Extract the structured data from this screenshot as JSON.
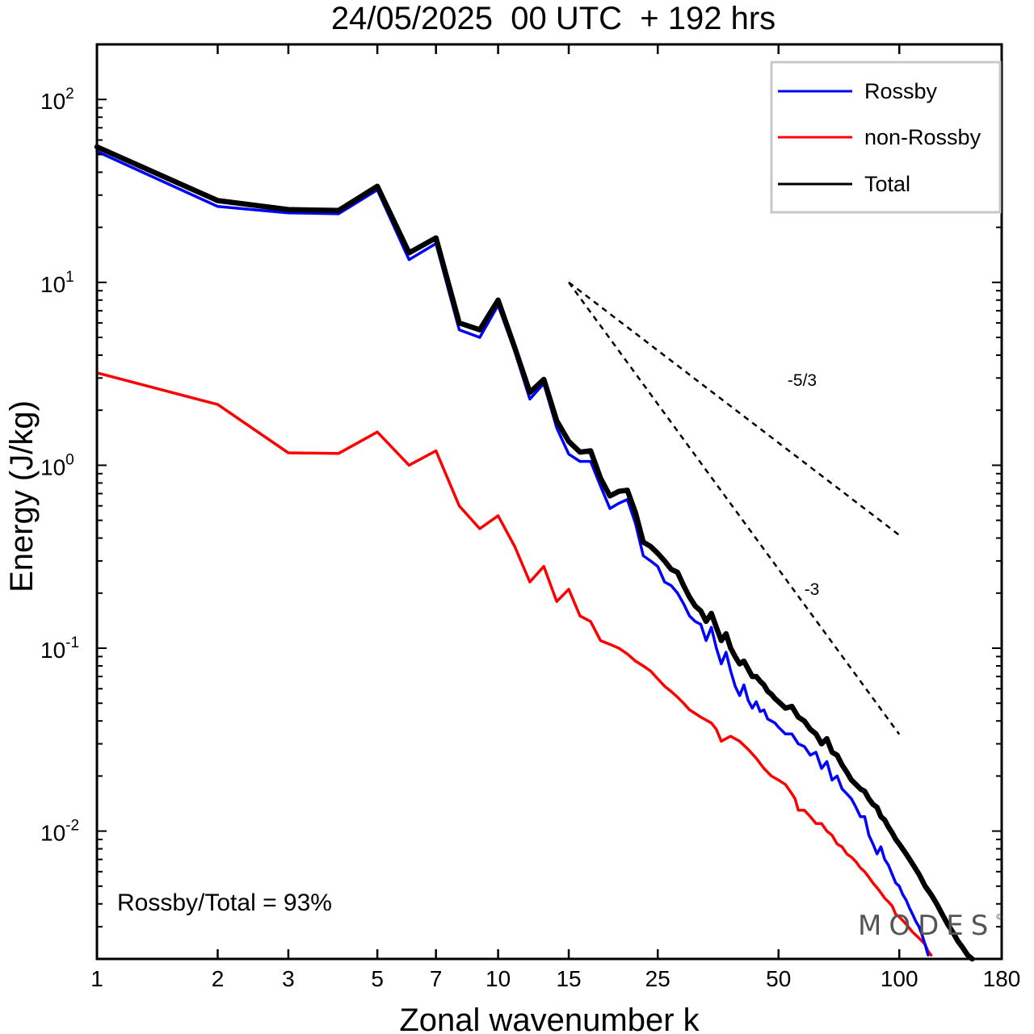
{
  "chart_data": {
    "type": "line",
    "title": "24/05/2025  00 UTC  + 192 hrs",
    "xlabel": "Zonal wavenumber k",
    "ylabel": "Energy (J/kg)",
    "xscale": "log",
    "yscale": "log",
    "xlim": [
      1,
      180
    ],
    "ylim": [
      0.002,
      200
    ],
    "x_ticks": [
      1,
      2,
      3,
      5,
      7,
      10,
      15,
      25,
      50,
      100,
      180
    ],
    "y_ticks": [
      {
        "value": 100,
        "base": "10",
        "exp": "2"
      },
      {
        "value": 10,
        "base": "10",
        "exp": "1"
      },
      {
        "value": 1,
        "base": "10",
        "exp": "0"
      },
      {
        "value": 0.1,
        "base": "10",
        "exp": "-1"
      },
      {
        "value": 0.01,
        "base": "10",
        "exp": "-2"
      }
    ],
    "legend_position": "top-right",
    "grid": false,
    "series": [
      {
        "name": "Rossby",
        "color": "#0000ff",
        "values": [
          [
            1,
            52
          ],
          [
            2,
            26
          ],
          [
            3,
            24
          ],
          [
            4,
            23.7
          ],
          [
            5,
            32
          ],
          [
            6,
            13.3
          ],
          [
            7,
            16.3
          ],
          [
            8,
            5.5
          ],
          [
            9,
            5.0
          ],
          [
            10,
            7.5
          ],
          [
            11,
            4.2
          ],
          [
            12,
            2.3
          ],
          [
            13,
            2.8
          ],
          [
            14,
            1.6
          ],
          [
            15,
            1.15
          ],
          [
            16,
            1.05
          ],
          [
            17,
            1.05
          ],
          [
            18,
            0.77
          ],
          [
            19,
            0.58
          ],
          [
            20,
            0.62
          ],
          [
            21,
            0.65
          ],
          [
            22,
            0.48
          ],
          [
            23,
            0.32
          ],
          [
            24,
            0.3
          ],
          [
            25,
            0.28
          ],
          [
            26,
            0.23
          ],
          [
            27,
            0.22
          ],
          [
            28,
            0.2
          ],
          [
            29,
            0.175
          ],
          [
            30,
            0.15
          ],
          [
            31,
            0.14
          ],
          [
            32,
            0.135
          ],
          [
            33,
            0.11
          ],
          [
            34,
            0.13
          ],
          [
            35,
            0.1
          ],
          [
            36,
            0.082
          ],
          [
            37,
            0.095
          ],
          [
            38,
            0.075
          ],
          [
            39,
            0.062
          ],
          [
            40,
            0.055
          ],
          [
            41,
            0.063
          ],
          [
            42,
            0.052
          ],
          [
            43,
            0.047
          ],
          [
            44,
            0.051
          ],
          [
            45,
            0.045
          ],
          [
            46,
            0.046
          ],
          [
            47,
            0.041
          ],
          [
            48,
            0.04
          ],
          [
            49,
            0.039
          ],
          [
            50,
            0.037
          ],
          [
            52,
            0.034
          ],
          [
            54,
            0.034
          ],
          [
            56,
            0.03
          ],
          [
            58,
            0.029
          ],
          [
            60,
            0.026
          ],
          [
            62,
            0.027
          ],
          [
            64,
            0.022
          ],
          [
            66,
            0.024
          ],
          [
            68,
            0.019
          ],
          [
            70,
            0.02
          ],
          [
            72,
            0.017
          ],
          [
            74,
            0.016
          ],
          [
            76,
            0.015
          ],
          [
            78,
            0.0135
          ],
          [
            80,
            0.012
          ],
          [
            82,
            0.012
          ],
          [
            84,
            0.0095
          ],
          [
            86,
            0.0085
          ],
          [
            88,
            0.0075
          ],
          [
            90,
            0.0082
          ],
          [
            92,
            0.007
          ],
          [
            94,
            0.0065
          ],
          [
            96,
            0.0058
          ],
          [
            98,
            0.0052
          ],
          [
            100,
            0.005
          ],
          [
            102,
            0.0045
          ],
          [
            104,
            0.0042
          ],
          [
            106,
            0.0038
          ],
          [
            108,
            0.0035
          ],
          [
            110,
            0.0032
          ],
          [
            112,
            0.003
          ],
          [
            114,
            0.0027
          ],
          [
            116,
            0.0024
          ],
          [
            118,
            0.0021
          ]
        ]
      },
      {
        "name": "non-Rossby",
        "color": "#ff0000",
        "values": [
          [
            1,
            3.2
          ],
          [
            2,
            2.15
          ],
          [
            3,
            1.17
          ],
          [
            4,
            1.16
          ],
          [
            5,
            1.52
          ],
          [
            6,
            1.0
          ],
          [
            7,
            1.2
          ],
          [
            8,
            0.6
          ],
          [
            9,
            0.45
          ],
          [
            10,
            0.53
          ],
          [
            11,
            0.36
          ],
          [
            12,
            0.23
          ],
          [
            13,
            0.28
          ],
          [
            14,
            0.18
          ],
          [
            15,
            0.21
          ],
          [
            16,
            0.15
          ],
          [
            17,
            0.14
          ],
          [
            18,
            0.11
          ],
          [
            19,
            0.105
          ],
          [
            20,
            0.1
          ],
          [
            21,
            0.093
          ],
          [
            22,
            0.085
          ],
          [
            23,
            0.08
          ],
          [
            24,
            0.075
          ],
          [
            25,
            0.068
          ],
          [
            26,
            0.062
          ],
          [
            27,
            0.058
          ],
          [
            28,
            0.054
          ],
          [
            29,
            0.05
          ],
          [
            30,
            0.046
          ],
          [
            32,
            0.042
          ],
          [
            34,
            0.039
          ],
          [
            35,
            0.036
          ],
          [
            36,
            0.031
          ],
          [
            37,
            0.032
          ],
          [
            38,
            0.033
          ],
          [
            40,
            0.031
          ],
          [
            42,
            0.028
          ],
          [
            44,
            0.025
          ],
          [
            46,
            0.022
          ],
          [
            48,
            0.02
          ],
          [
            50,
            0.019
          ],
          [
            52,
            0.018
          ],
          [
            54,
            0.016
          ],
          [
            55,
            0.015
          ],
          [
            56,
            0.013
          ],
          [
            58,
            0.013
          ],
          [
            60,
            0.012
          ],
          [
            62,
            0.011
          ],
          [
            64,
            0.011
          ],
          [
            66,
            0.01
          ],
          [
            68,
            0.0095
          ],
          [
            70,
            0.0085
          ],
          [
            72,
            0.0082
          ],
          [
            74,
            0.0075
          ],
          [
            76,
            0.0072
          ],
          [
            78,
            0.0068
          ],
          [
            80,
            0.0063
          ],
          [
            82,
            0.006
          ],
          [
            84,
            0.0056
          ],
          [
            86,
            0.0052
          ],
          [
            88,
            0.0049
          ],
          [
            90,
            0.0046
          ],
          [
            92,
            0.0043
          ],
          [
            94,
            0.0041
          ],
          [
            96,
            0.0039
          ],
          [
            98,
            0.0035
          ],
          [
            100,
            0.0034
          ],
          [
            104,
            0.0031
          ],
          [
            108,
            0.0028
          ],
          [
            112,
            0.0026
          ],
          [
            116,
            0.0024
          ],
          [
            118,
            0.0022
          ],
          [
            120,
            0.0021
          ]
        ]
      },
      {
        "name": "Total",
        "color": "#000000",
        "values": [
          [
            1,
            55
          ],
          [
            2,
            28
          ],
          [
            3,
            25
          ],
          [
            4,
            24.7
          ],
          [
            5,
            33.5
          ],
          [
            6,
            14.5
          ],
          [
            7,
            17.5
          ],
          [
            8,
            6.0
          ],
          [
            9,
            5.5
          ],
          [
            10,
            8.0
          ],
          [
            11,
            4.4
          ],
          [
            12,
            2.5
          ],
          [
            13,
            2.95
          ],
          [
            14,
            1.75
          ],
          [
            15,
            1.35
          ],
          [
            16,
            1.18
          ],
          [
            17,
            1.2
          ],
          [
            18,
            0.85
          ],
          [
            19,
            0.68
          ],
          [
            20,
            0.72
          ],
          [
            21,
            0.73
          ],
          [
            22,
            0.55
          ],
          [
            23,
            0.38
          ],
          [
            24,
            0.36
          ],
          [
            25,
            0.33
          ],
          [
            26,
            0.3
          ],
          [
            27,
            0.27
          ],
          [
            28,
            0.26
          ],
          [
            29,
            0.22
          ],
          [
            30,
            0.19
          ],
          [
            31,
            0.17
          ],
          [
            32,
            0.16
          ],
          [
            33,
            0.14
          ],
          [
            34,
            0.155
          ],
          [
            35,
            0.13
          ],
          [
            36,
            0.11
          ],
          [
            37,
            0.12
          ],
          [
            38,
            0.1
          ],
          [
            39,
            0.09
          ],
          [
            40,
            0.082
          ],
          [
            41,
            0.085
          ],
          [
            42,
            0.077
          ],
          [
            43,
            0.07
          ],
          [
            44,
            0.07
          ],
          [
            45,
            0.066
          ],
          [
            46,
            0.063
          ],
          [
            47,
            0.058
          ],
          [
            48,
            0.056
          ],
          [
            49,
            0.053
          ],
          [
            50,
            0.051
          ],
          [
            52,
            0.047
          ],
          [
            54,
            0.048
          ],
          [
            56,
            0.042
          ],
          [
            58,
            0.04
          ],
          [
            60,
            0.036
          ],
          [
            62,
            0.034
          ],
          [
            64,
            0.03
          ],
          [
            66,
            0.032
          ],
          [
            68,
            0.027
          ],
          [
            70,
            0.026
          ],
          [
            72,
            0.023
          ],
          [
            74,
            0.021
          ],
          [
            76,
            0.019
          ],
          [
            78,
            0.018
          ],
          [
            80,
            0.017
          ],
          [
            82,
            0.0165
          ],
          [
            84,
            0.015
          ],
          [
            86,
            0.014
          ],
          [
            88,
            0.0135
          ],
          [
            90,
            0.012
          ],
          [
            92,
            0.0115
          ],
          [
            94,
            0.0105
          ],
          [
            96,
            0.0098
          ],
          [
            98,
            0.009
          ],
          [
            100,
            0.0085
          ],
          [
            104,
            0.0075
          ],
          [
            108,
            0.0066
          ],
          [
            112,
            0.0058
          ],
          [
            116,
            0.005
          ],
          [
            120,
            0.0045
          ],
          [
            124,
            0.004
          ],
          [
            128,
            0.0035
          ],
          [
            132,
            0.0031
          ],
          [
            136,
            0.0028
          ],
          [
            140,
            0.0025
          ],
          [
            144,
            0.0023
          ],
          [
            148,
            0.0021
          ],
          [
            152,
            0.002
          ]
        ]
      }
    ],
    "reference_lines": [
      {
        "label": "-5/3",
        "points": [
          [
            15,
            10
          ],
          [
            100,
            0.415
          ]
        ]
      },
      {
        "label": "-3",
        "points": [
          [
            15,
            10
          ],
          [
            100,
            0.0338
          ]
        ]
      }
    ],
    "annotations": {
      "ratio_text": "Rossby/Total = 93%",
      "watermark": "MODES",
      "watermark_mark": "©"
    }
  }
}
